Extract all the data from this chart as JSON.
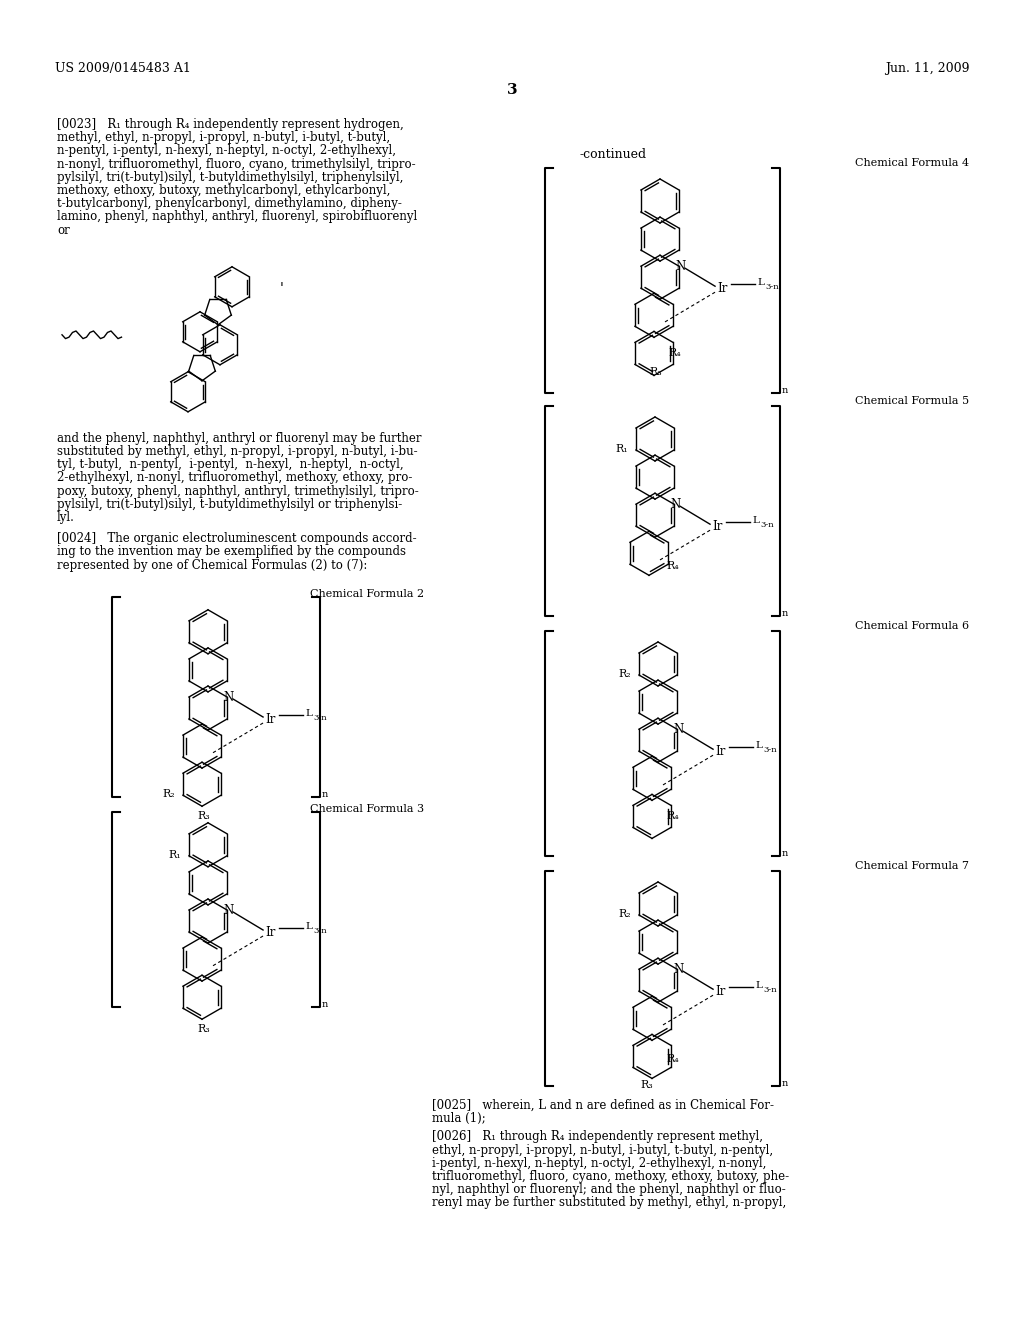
{
  "page_number": "3",
  "patent_number": "US 2009/0145483 A1",
  "patent_date": "Jun. 11, 2009",
  "background_color": "#ffffff",
  "text_color": "#000000",
  "continued_label": "-continued",
  "label_cf2": "Chemical Formula 2",
  "label_cf3": "Chemical Formula 3",
  "label_cf4": "Chemical Formula 4",
  "label_cf5": "Chemical Formula 5",
  "label_cf6": "Chemical Formula 6",
  "label_cf7": "Chemical Formula 7",
  "p0023_lines": [
    "[0023]   R₁ through R₄ independently represent hydrogen,",
    "methyl, ethyl, n-propyl, i-propyl, n-butyl, i-butyl, t-butyl,",
    "n-pentyl, i-pentyl, n-hexyl, n-heptyl, n-octyl, 2-ethylhexyl,",
    "n-nonyl, trifluoromethyl, fluoro, cyano, trimethylsilyl, tripro-",
    "pylsilyl, tri(t-butyl)silyl, t-butyldimethylsilyl, triphenylsilyl,",
    "methoxy, ethoxy, butoxy, methylcarbonyl, ethylcarbonyl,",
    "t-butylcarbonyl, phenylcarbonyl, dimethylamino, dipheny-",
    "lamino, phenyl, naphthyl, anthryl, fluorenyl, spirobifluorenyl",
    "or"
  ],
  "p_and_lines": [
    "and the phenyl, naphthyl, anthryl or fluorenyl may be further",
    "substituted by methyl, ethyl, n-propyl, i-propyl, n-butyl, i-bu-",
    "tyl, t-butyl,  n-pentyl,  i-pentyl,  n-hexyl,  n-heptyl,  n-octyl,",
    "2-ethylhexyl, n-nonyl, trifluoromethyl, methoxy, ethoxy, pro-",
    "poxy, butoxy, phenyl, naphthyl, anthryl, trimethylsilyl, tripro-",
    "pylsilyl, tri(t-butyl)silyl, t-butyldimethylsilyl or triphenylsi-",
    "lyl."
  ],
  "p0024_lines": [
    "[0024]   The organic electroluminescent compounds accord-",
    "ing to the invention may be exemplified by the compounds",
    "represented by one of Chemical Formulas (2) to (7):"
  ],
  "p0025_lines": [
    "[0025]   wherein, L and n are defined as in Chemical For-",
    "mula (1);"
  ],
  "p0026_lines": [
    "[0026]   R₁ through R₄ independently represent methyl,",
    "ethyl, n-propyl, i-propyl, n-butyl, i-butyl, t-butyl, n-pentyl,",
    "i-pentyl, n-hexyl, n-heptyl, n-octyl, 2-ethylhexyl, n-nonyl,",
    "trifluoromethyl, fluoro, cyano, methoxy, ethoxy, butoxy, phe-",
    "nyl, naphthyl or fluorenyl; and the phenyl, naphthyl or fluo-",
    "renyl may be further substituted by methyl, ethyl, n-propyl,"
  ]
}
